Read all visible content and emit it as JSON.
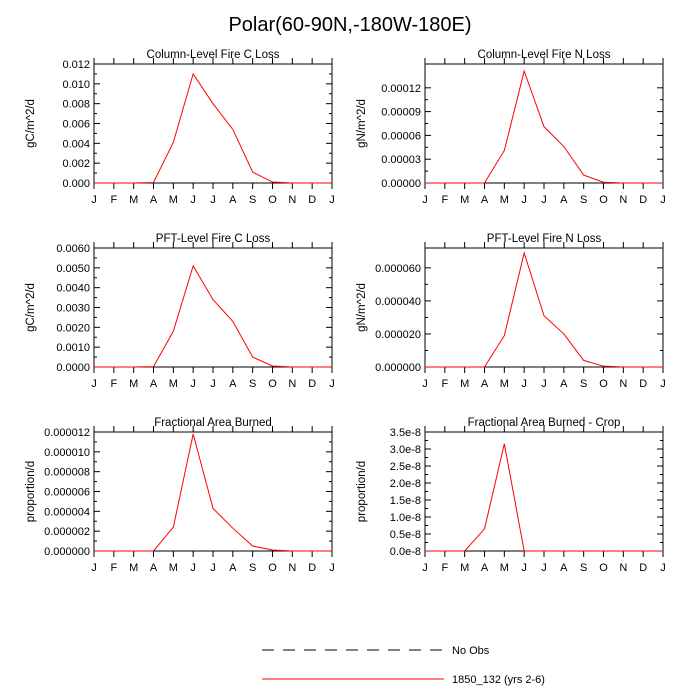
{
  "title": "Polar(60-90N,-180W-180E)",
  "months": [
    "J",
    "F",
    "M",
    "A",
    "M",
    "J",
    "J",
    "A",
    "S",
    "O",
    "N",
    "D",
    "J"
  ],
  "line_color": "#ff0000",
  "chart_data": [
    {
      "type": "line",
      "title": "Column-Level Fire C Loss",
      "ylabel": "gC/m^2/d",
      "ylim": [
        0,
        0.012
      ],
      "yticks": [
        "0.000",
        "0.002",
        "0.004",
        "0.006",
        "0.008",
        "0.010",
        "0.012"
      ],
      "x": [
        "J",
        "F",
        "M",
        "A",
        "M",
        "J",
        "J",
        "A",
        "S",
        "O",
        "N",
        "D",
        "J"
      ],
      "series": [
        {
          "name": "1850_132 (yrs 2-6)",
          "values": [
            0,
            0,
            0,
            5e-05,
            0.0041,
            0.011,
            0.008,
            0.0054,
            0.0011,
            0.0001,
            0,
            0,
            0
          ]
        }
      ]
    },
    {
      "type": "line",
      "title": "Column-Level Fire N Loss",
      "ylabel": "gN/m^2/d",
      "ylim": [
        0,
        0.00015
      ],
      "yticks": [
        "0.00000",
        "0.00003",
        "0.00006",
        "0.00009",
        "0.00012"
      ],
      "x": [
        "J",
        "F",
        "M",
        "A",
        "M",
        "J",
        "J",
        "A",
        "S",
        "O",
        "N",
        "D",
        "J"
      ],
      "series": [
        {
          "name": "1850_132 (yrs 2-6)",
          "values": [
            0,
            0,
            0,
            0,
            4.1e-05,
            0.000141,
            7.1e-05,
            4.6e-05,
            1e-05,
            1e-06,
            0,
            0,
            0
          ]
        }
      ]
    },
    {
      "type": "line",
      "title": "PFT-Level Fire C Loss",
      "ylabel": "gC/m^2/d",
      "ylim": [
        0,
        0.006
      ],
      "yticks": [
        "0.0000",
        "0.0010",
        "0.0020",
        "0.0030",
        "0.0040",
        "0.0050",
        "0.0060"
      ],
      "x": [
        "J",
        "F",
        "M",
        "A",
        "M",
        "J",
        "J",
        "A",
        "S",
        "O",
        "N",
        "D",
        "J"
      ],
      "series": [
        {
          "name": "1850_132 (yrs 2-6)",
          "values": [
            0,
            0,
            0,
            2e-05,
            0.0018,
            0.0051,
            0.0034,
            0.0023,
            0.0005,
            5e-05,
            0,
            0,
            0
          ]
        }
      ]
    },
    {
      "type": "line",
      "title": "PFT-Level Fire N Loss",
      "ylabel": "gN/m^2/d",
      "ylim": [
        0,
        7.2e-05
      ],
      "yticks": [
        "0.000000",
        "0.000020",
        "0.000040",
        "0.000060"
      ],
      "x": [
        "J",
        "F",
        "M",
        "A",
        "M",
        "J",
        "J",
        "A",
        "S",
        "O",
        "N",
        "D",
        "J"
      ],
      "series": [
        {
          "name": "1850_132 (yrs 2-6)",
          "values": [
            0,
            0,
            0,
            0,
            1.9e-05,
            6.9e-05,
            3.1e-05,
            2e-05,
            4e-06,
            5e-07,
            0,
            0,
            0
          ]
        }
      ]
    },
    {
      "type": "line",
      "title": "Fractional Area Burned",
      "ylabel": "proportion/d",
      "ylim": [
        0,
        1.2e-05
      ],
      "yticks": [
        "0.000000",
        "0.000002",
        "0.000004",
        "0.000006",
        "0.000008",
        "0.000010",
        "0.000012"
      ],
      "x": [
        "J",
        "F",
        "M",
        "A",
        "M",
        "J",
        "J",
        "A",
        "S",
        "O",
        "N",
        "D",
        "J"
      ],
      "series": [
        {
          "name": "1850_132 (yrs 2-6)",
          "values": [
            0,
            0,
            0,
            0,
            2.4e-06,
            1.18e-05,
            4.3e-06,
            2.3e-06,
            5e-07,
            1e-07,
            0,
            0,
            0
          ]
        }
      ]
    },
    {
      "type": "line",
      "title": "Fractional Area Burned - Crop",
      "ylabel": "proportion/d",
      "ylim": [
        0,
        3.5e-08
      ],
      "yticks": [
        "0.0e-8",
        "0.5e-8",
        "1.0e-8",
        "1.5e-8",
        "2.0e-8",
        "2.5e-8",
        "3.0e-8",
        "3.5e-8"
      ],
      "x": [
        "J",
        "F",
        "M",
        "A",
        "M",
        "J",
        "J",
        "A",
        "S",
        "O",
        "N",
        "D",
        "J"
      ],
      "series": [
        {
          "name": "1850_132 (yrs 2-6)",
          "values": [
            0,
            0,
            0,
            6.5e-09,
            3.15e-08,
            0,
            0,
            0,
            0,
            0,
            0,
            0,
            0
          ]
        }
      ]
    }
  ],
  "legend": [
    {
      "label": "No Obs",
      "style": "dashed",
      "color": "#000000"
    },
    {
      "label": "1850_132 (yrs 2-6)",
      "style": "solid",
      "color": "#ff0000"
    }
  ]
}
